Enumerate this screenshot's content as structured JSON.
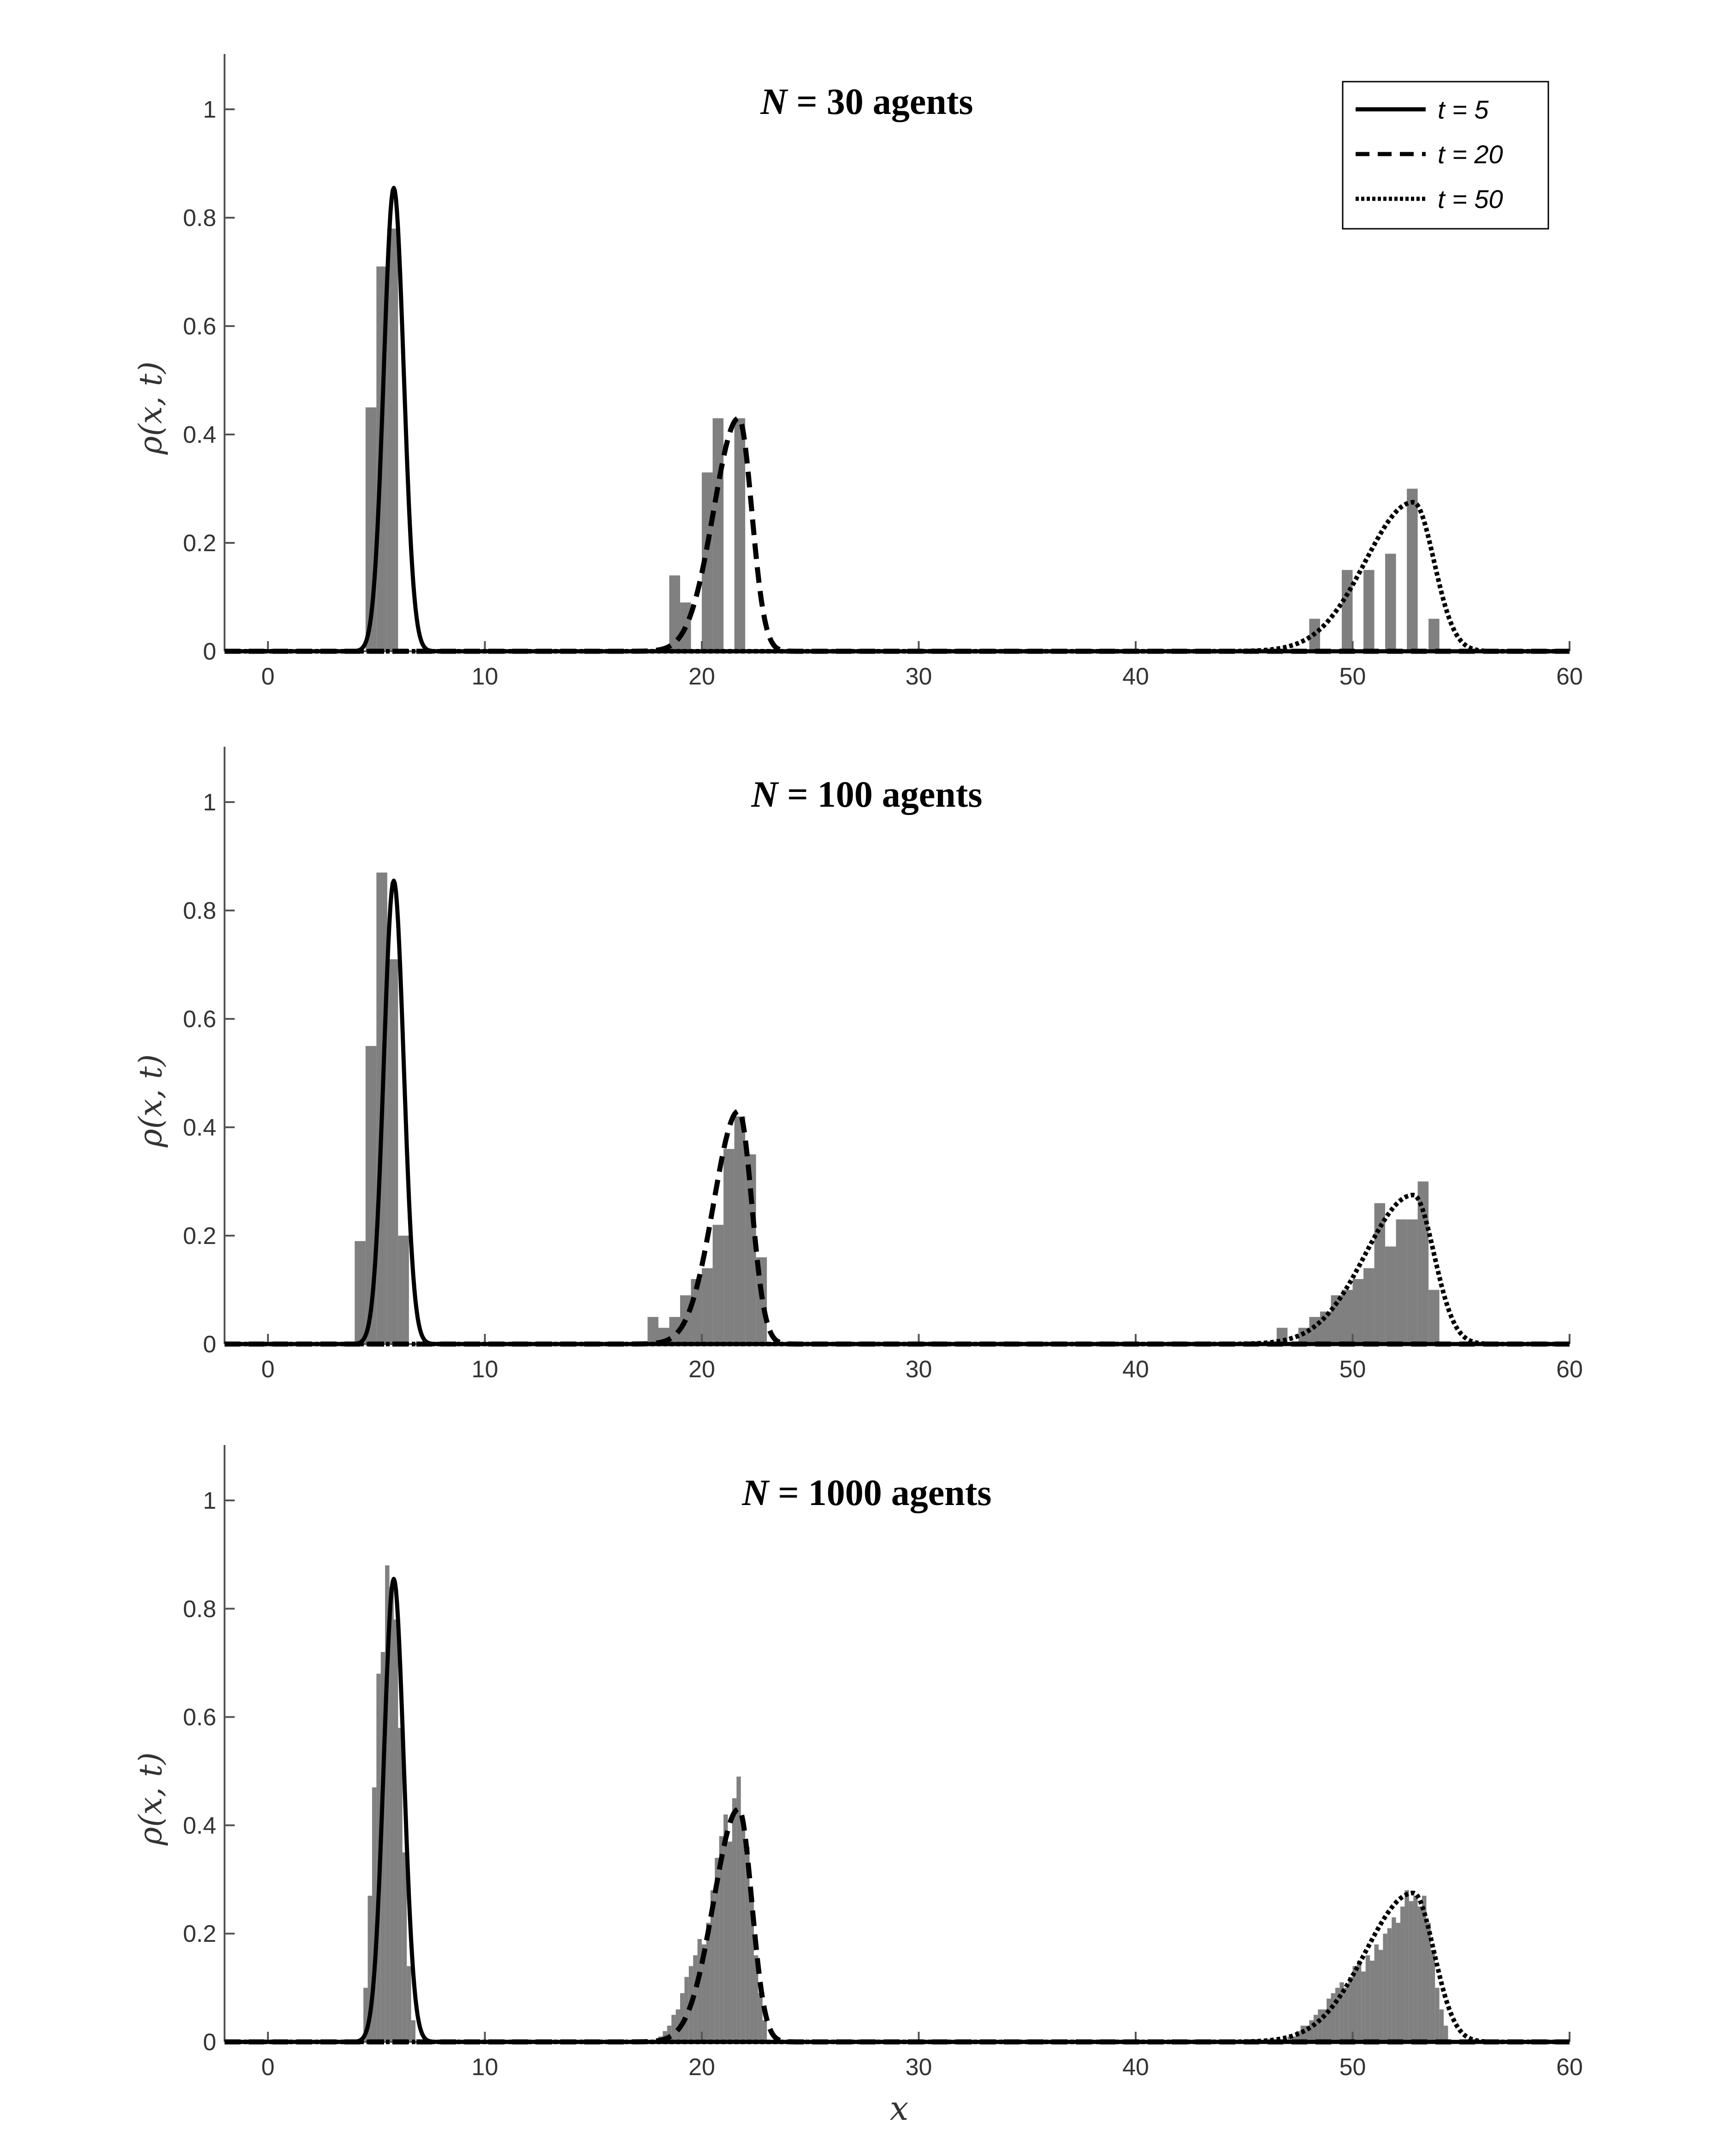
{
  "figure": {
    "xlabel": "x",
    "ylabel": "ρ(x, t)",
    "legend": [
      {
        "label": "t = 5",
        "style": "solid"
      },
      {
        "label": "t = 20",
        "style": "dashed"
      },
      {
        "label": "t = 50",
        "style": "dotted"
      }
    ]
  },
  "chart_data": [
    {
      "type": "bar",
      "title_n": "N",
      "title_rest": " = 30 agents",
      "xlim": [
        -2,
        60
      ],
      "ylim": [
        0,
        1.1
      ],
      "xticks": [
        0,
        10,
        20,
        30,
        40,
        50,
        60
      ],
      "yticks": [
        0,
        0.2,
        0.4,
        0.6,
        0.8,
        1
      ],
      "grid": false,
      "legend_position": "top-right",
      "histogram": {
        "bin_width": 0.5,
        "bins": [
          [
            4.75,
            0.45
          ],
          [
            5.25,
            0.71
          ],
          [
            5.75,
            0.78
          ],
          [
            18.75,
            0.14
          ],
          [
            19.25,
            0.09
          ],
          [
            20.25,
            0.33
          ],
          [
            20.75,
            0.43
          ],
          [
            21.75,
            0.43
          ],
          [
            48.25,
            0.06
          ],
          [
            49.75,
            0.15
          ],
          [
            50.75,
            0.15
          ],
          [
            51.75,
            0.18
          ],
          [
            52.75,
            0.3
          ],
          [
            53.75,
            0.06
          ]
        ]
      },
      "curves": [
        {
          "name": "t = 5",
          "style": "solid",
          "center": 5.8,
          "sigma": 0.46,
          "peak": 0.855
        },
        {
          "name": "t = 20",
          "style": "dashed",
          "center": 21.7,
          "sigma_left": 1.15,
          "sigma_right": 0.6,
          "peak": 0.43
        },
        {
          "name": "t = 50",
          "style": "dotted",
          "center": 52.8,
          "sigma_left": 2.2,
          "sigma_right": 0.95,
          "peak": 0.275
        }
      ]
    },
    {
      "type": "bar",
      "title_n": "N",
      "title_rest": " = 100 agents",
      "xlim": [
        -2,
        60
      ],
      "ylim": [
        0,
        1.1
      ],
      "xticks": [
        0,
        10,
        20,
        30,
        40,
        50,
        60
      ],
      "yticks": [
        0,
        0.2,
        0.4,
        0.6,
        0.8,
        1
      ],
      "grid": false,
      "histogram": {
        "bin_width": 0.5,
        "bins": [
          [
            4.25,
            0.19
          ],
          [
            4.75,
            0.55
          ],
          [
            5.25,
            0.87
          ],
          [
            5.75,
            0.71
          ],
          [
            6.25,
            0.2
          ],
          [
            17.75,
            0.05
          ],
          [
            18.25,
            0.03
          ],
          [
            18.75,
            0.05
          ],
          [
            19.25,
            0.09
          ],
          [
            19.75,
            0.12
          ],
          [
            20.25,
            0.14
          ],
          [
            20.75,
            0.22
          ],
          [
            21.25,
            0.36
          ],
          [
            21.75,
            0.42
          ],
          [
            22.25,
            0.35
          ],
          [
            22.75,
            0.16
          ],
          [
            46.75,
            0.03
          ],
          [
            47.75,
            0.03
          ],
          [
            48.25,
            0.05
          ],
          [
            48.75,
            0.06
          ],
          [
            49.25,
            0.09
          ],
          [
            49.75,
            0.1
          ],
          [
            50.25,
            0.12
          ],
          [
            50.75,
            0.14
          ],
          [
            51.25,
            0.26
          ],
          [
            51.75,
            0.18
          ],
          [
            52.25,
            0.23
          ],
          [
            52.75,
            0.23
          ],
          [
            53.25,
            0.3
          ],
          [
            53.75,
            0.1
          ]
        ]
      },
      "curves": [
        {
          "name": "t = 5",
          "style": "solid",
          "center": 5.8,
          "sigma": 0.46,
          "peak": 0.855
        },
        {
          "name": "t = 20",
          "style": "dashed",
          "center": 21.7,
          "sigma_left": 1.15,
          "sigma_right": 0.6,
          "peak": 0.43
        },
        {
          "name": "t = 50",
          "style": "dotted",
          "center": 52.8,
          "sigma_left": 2.2,
          "sigma_right": 0.95,
          "peak": 0.275
        }
      ]
    },
    {
      "type": "bar",
      "title_n": "N",
      "title_rest": " = 1000 agents",
      "xlim": [
        -2,
        60
      ],
      "ylim": [
        0,
        1.1
      ],
      "xticks": [
        0,
        10,
        20,
        30,
        40,
        50,
        60
      ],
      "yticks": [
        0,
        0.2,
        0.4,
        0.6,
        0.8,
        1
      ],
      "grid": false,
      "histogram": {
        "bin_width": 0.2,
        "bins": [
          [
            4.5,
            0.1
          ],
          [
            4.7,
            0.27
          ],
          [
            4.9,
            0.47
          ],
          [
            5.1,
            0.68
          ],
          [
            5.3,
            0.72
          ],
          [
            5.5,
            0.88
          ],
          [
            5.7,
            0.84
          ],
          [
            5.9,
            0.78
          ],
          [
            6.1,
            0.58
          ],
          [
            6.3,
            0.35
          ],
          [
            6.5,
            0.14
          ],
          [
            6.7,
            0.04
          ],
          [
            18.1,
            0.01
          ],
          [
            18.3,
            0.02
          ],
          [
            18.5,
            0.03
          ],
          [
            18.7,
            0.05
          ],
          [
            18.9,
            0.06
          ],
          [
            19.1,
            0.09
          ],
          [
            19.3,
            0.12
          ],
          [
            19.5,
            0.14
          ],
          [
            19.7,
            0.16
          ],
          [
            19.9,
            0.19
          ],
          [
            20.1,
            0.18
          ],
          [
            20.3,
            0.22
          ],
          [
            20.5,
            0.28
          ],
          [
            20.7,
            0.34
          ],
          [
            20.9,
            0.38
          ],
          [
            21.1,
            0.42
          ],
          [
            21.3,
            0.37
          ],
          [
            21.5,
            0.45
          ],
          [
            21.7,
            0.49
          ],
          [
            21.9,
            0.4
          ],
          [
            22.1,
            0.36
          ],
          [
            22.3,
            0.26
          ],
          [
            22.5,
            0.16
          ],
          [
            22.7,
            0.09
          ],
          [
            22.9,
            0.04
          ],
          [
            47.1,
            0.01
          ],
          [
            47.3,
            0.01
          ],
          [
            47.5,
            0.02
          ],
          [
            47.7,
            0.03
          ],
          [
            47.9,
            0.03
          ],
          [
            48.1,
            0.04
          ],
          [
            48.3,
            0.05
          ],
          [
            48.5,
            0.06
          ],
          [
            48.7,
            0.06
          ],
          [
            48.9,
            0.08
          ],
          [
            49.1,
            0.09
          ],
          [
            49.3,
            0.1
          ],
          [
            49.5,
            0.11
          ],
          [
            49.7,
            0.1
          ],
          [
            49.9,
            0.12
          ],
          [
            50.1,
            0.14
          ],
          [
            50.3,
            0.15
          ],
          [
            50.5,
            0.13
          ],
          [
            50.7,
            0.16
          ],
          [
            50.9,
            0.15
          ],
          [
            51.1,
            0.18
          ],
          [
            51.3,
            0.17
          ],
          [
            51.5,
            0.2
          ],
          [
            51.7,
            0.21
          ],
          [
            51.9,
            0.23
          ],
          [
            52.1,
            0.22
          ],
          [
            52.3,
            0.25
          ],
          [
            52.5,
            0.28
          ],
          [
            52.7,
            0.26
          ],
          [
            52.9,
            0.27
          ],
          [
            53.1,
            0.25
          ],
          [
            53.3,
            0.27
          ],
          [
            53.5,
            0.22
          ],
          [
            53.7,
            0.17
          ],
          [
            53.9,
            0.1
          ],
          [
            54.1,
            0.06
          ],
          [
            54.3,
            0.03
          ]
        ]
      },
      "curves": [
        {
          "name": "t = 5",
          "style": "solid",
          "center": 5.8,
          "sigma": 0.46,
          "peak": 0.855
        },
        {
          "name": "t = 20",
          "style": "dashed",
          "center": 21.7,
          "sigma_left": 1.15,
          "sigma_right": 0.6,
          "peak": 0.43
        },
        {
          "name": "t = 50",
          "style": "dotted",
          "center": 52.8,
          "sigma_left": 2.2,
          "sigma_right": 0.95,
          "peak": 0.275
        }
      ]
    }
  ]
}
